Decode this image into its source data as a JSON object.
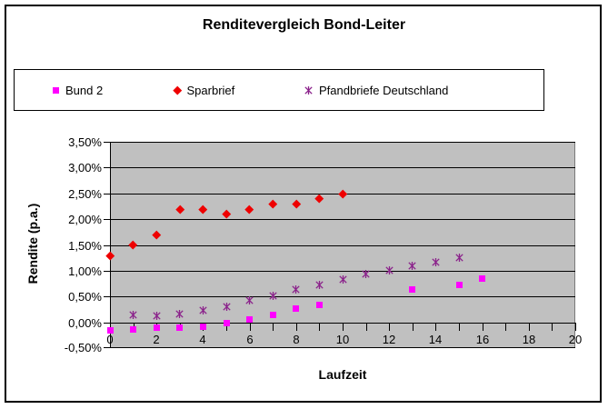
{
  "title": "Renditevergleich Bond-Leiter",
  "legend": [
    {
      "label": "Bund 2",
      "marker": "square",
      "color": "#FF00FF"
    },
    {
      "label": "Sparbrief",
      "marker": "diamond",
      "color": "#EE0000"
    },
    {
      "label": "Pfandbriefe Deutschland",
      "marker": "xstar",
      "color": "#8B228B"
    }
  ],
  "chart_data": {
    "type": "scatter",
    "title": "Renditevergleich Bond-Leiter",
    "xlabel": "Laufzeit",
    "ylabel": "Rendite (p.a.)",
    "unit": "percent p.a.",
    "xlim": [
      0,
      20
    ],
    "ylim": [
      -0.5,
      3.5
    ],
    "grid": true,
    "plot_background": "#C0C0C0",
    "legend_position": "top",
    "y_ticks": [
      {
        "v": 3.5,
        "label": "3,50%"
      },
      {
        "v": 3.0,
        "label": "3,00%"
      },
      {
        "v": 2.5,
        "label": "2,50%"
      },
      {
        "v": 2.0,
        "label": "2,00%"
      },
      {
        "v": 1.5,
        "label": "1,50%"
      },
      {
        "v": 1.0,
        "label": "1,00%"
      },
      {
        "v": 0.5,
        "label": "0,50%"
      },
      {
        "v": 0.0,
        "label": "0,00%"
      },
      {
        "v": -0.5,
        "label": "-0,50%"
      }
    ],
    "x_minor_tick_step": 1,
    "x_ticks": [
      {
        "v": 0,
        "label": "0"
      },
      {
        "v": 2,
        "label": "2"
      },
      {
        "v": 4,
        "label": "4"
      },
      {
        "v": 6,
        "label": "6"
      },
      {
        "v": 8,
        "label": "8"
      },
      {
        "v": 10,
        "label": "10"
      },
      {
        "v": 12,
        "label": "12"
      },
      {
        "v": 14,
        "label": "14"
      },
      {
        "v": 16,
        "label": "16"
      },
      {
        "v": 18,
        "label": "18"
      },
      {
        "v": 20,
        "label": "20"
      }
    ],
    "series": [
      {
        "name": "Bund 2",
        "marker": "square",
        "color": "#FF00FF",
        "points": [
          [
            0,
            -0.15
          ],
          [
            1,
            -0.13
          ],
          [
            2,
            -0.11
          ],
          [
            3,
            -0.11
          ],
          [
            4,
            -0.08
          ],
          [
            5,
            -0.01
          ],
          [
            6,
            0.05
          ],
          [
            7,
            0.14
          ],
          [
            8,
            0.27
          ],
          [
            9,
            0.34
          ],
          [
            13,
            0.63
          ],
          [
            15,
            0.73
          ],
          [
            16,
            0.84
          ]
        ]
      },
      {
        "name": "Sparbrief",
        "marker": "diamond",
        "color": "#EE0000",
        "points": [
          [
            0,
            1.3
          ],
          [
            1,
            1.5
          ],
          [
            2,
            1.7
          ],
          [
            3,
            2.2
          ],
          [
            4,
            2.2
          ],
          [
            5,
            2.1
          ],
          [
            6,
            2.2
          ],
          [
            7,
            2.3
          ],
          [
            8,
            2.3
          ],
          [
            9,
            2.4
          ],
          [
            10,
            2.5
          ]
        ]
      },
      {
        "name": "Pfandbriefe Deutschland",
        "marker": "xstar",
        "color": "#8B228B",
        "points": [
          [
            1,
            0.22
          ],
          [
            2,
            0.2
          ],
          [
            3,
            0.23
          ],
          [
            4,
            0.3
          ],
          [
            5,
            0.38
          ],
          [
            6,
            0.5
          ],
          [
            7,
            0.58
          ],
          [
            8,
            0.7
          ],
          [
            9,
            0.8
          ],
          [
            10,
            0.9
          ],
          [
            11,
            1.0
          ],
          [
            12,
            1.08
          ],
          [
            13,
            1.16
          ],
          [
            14,
            1.24
          ],
          [
            15,
            1.32
          ]
        ]
      }
    ]
  }
}
